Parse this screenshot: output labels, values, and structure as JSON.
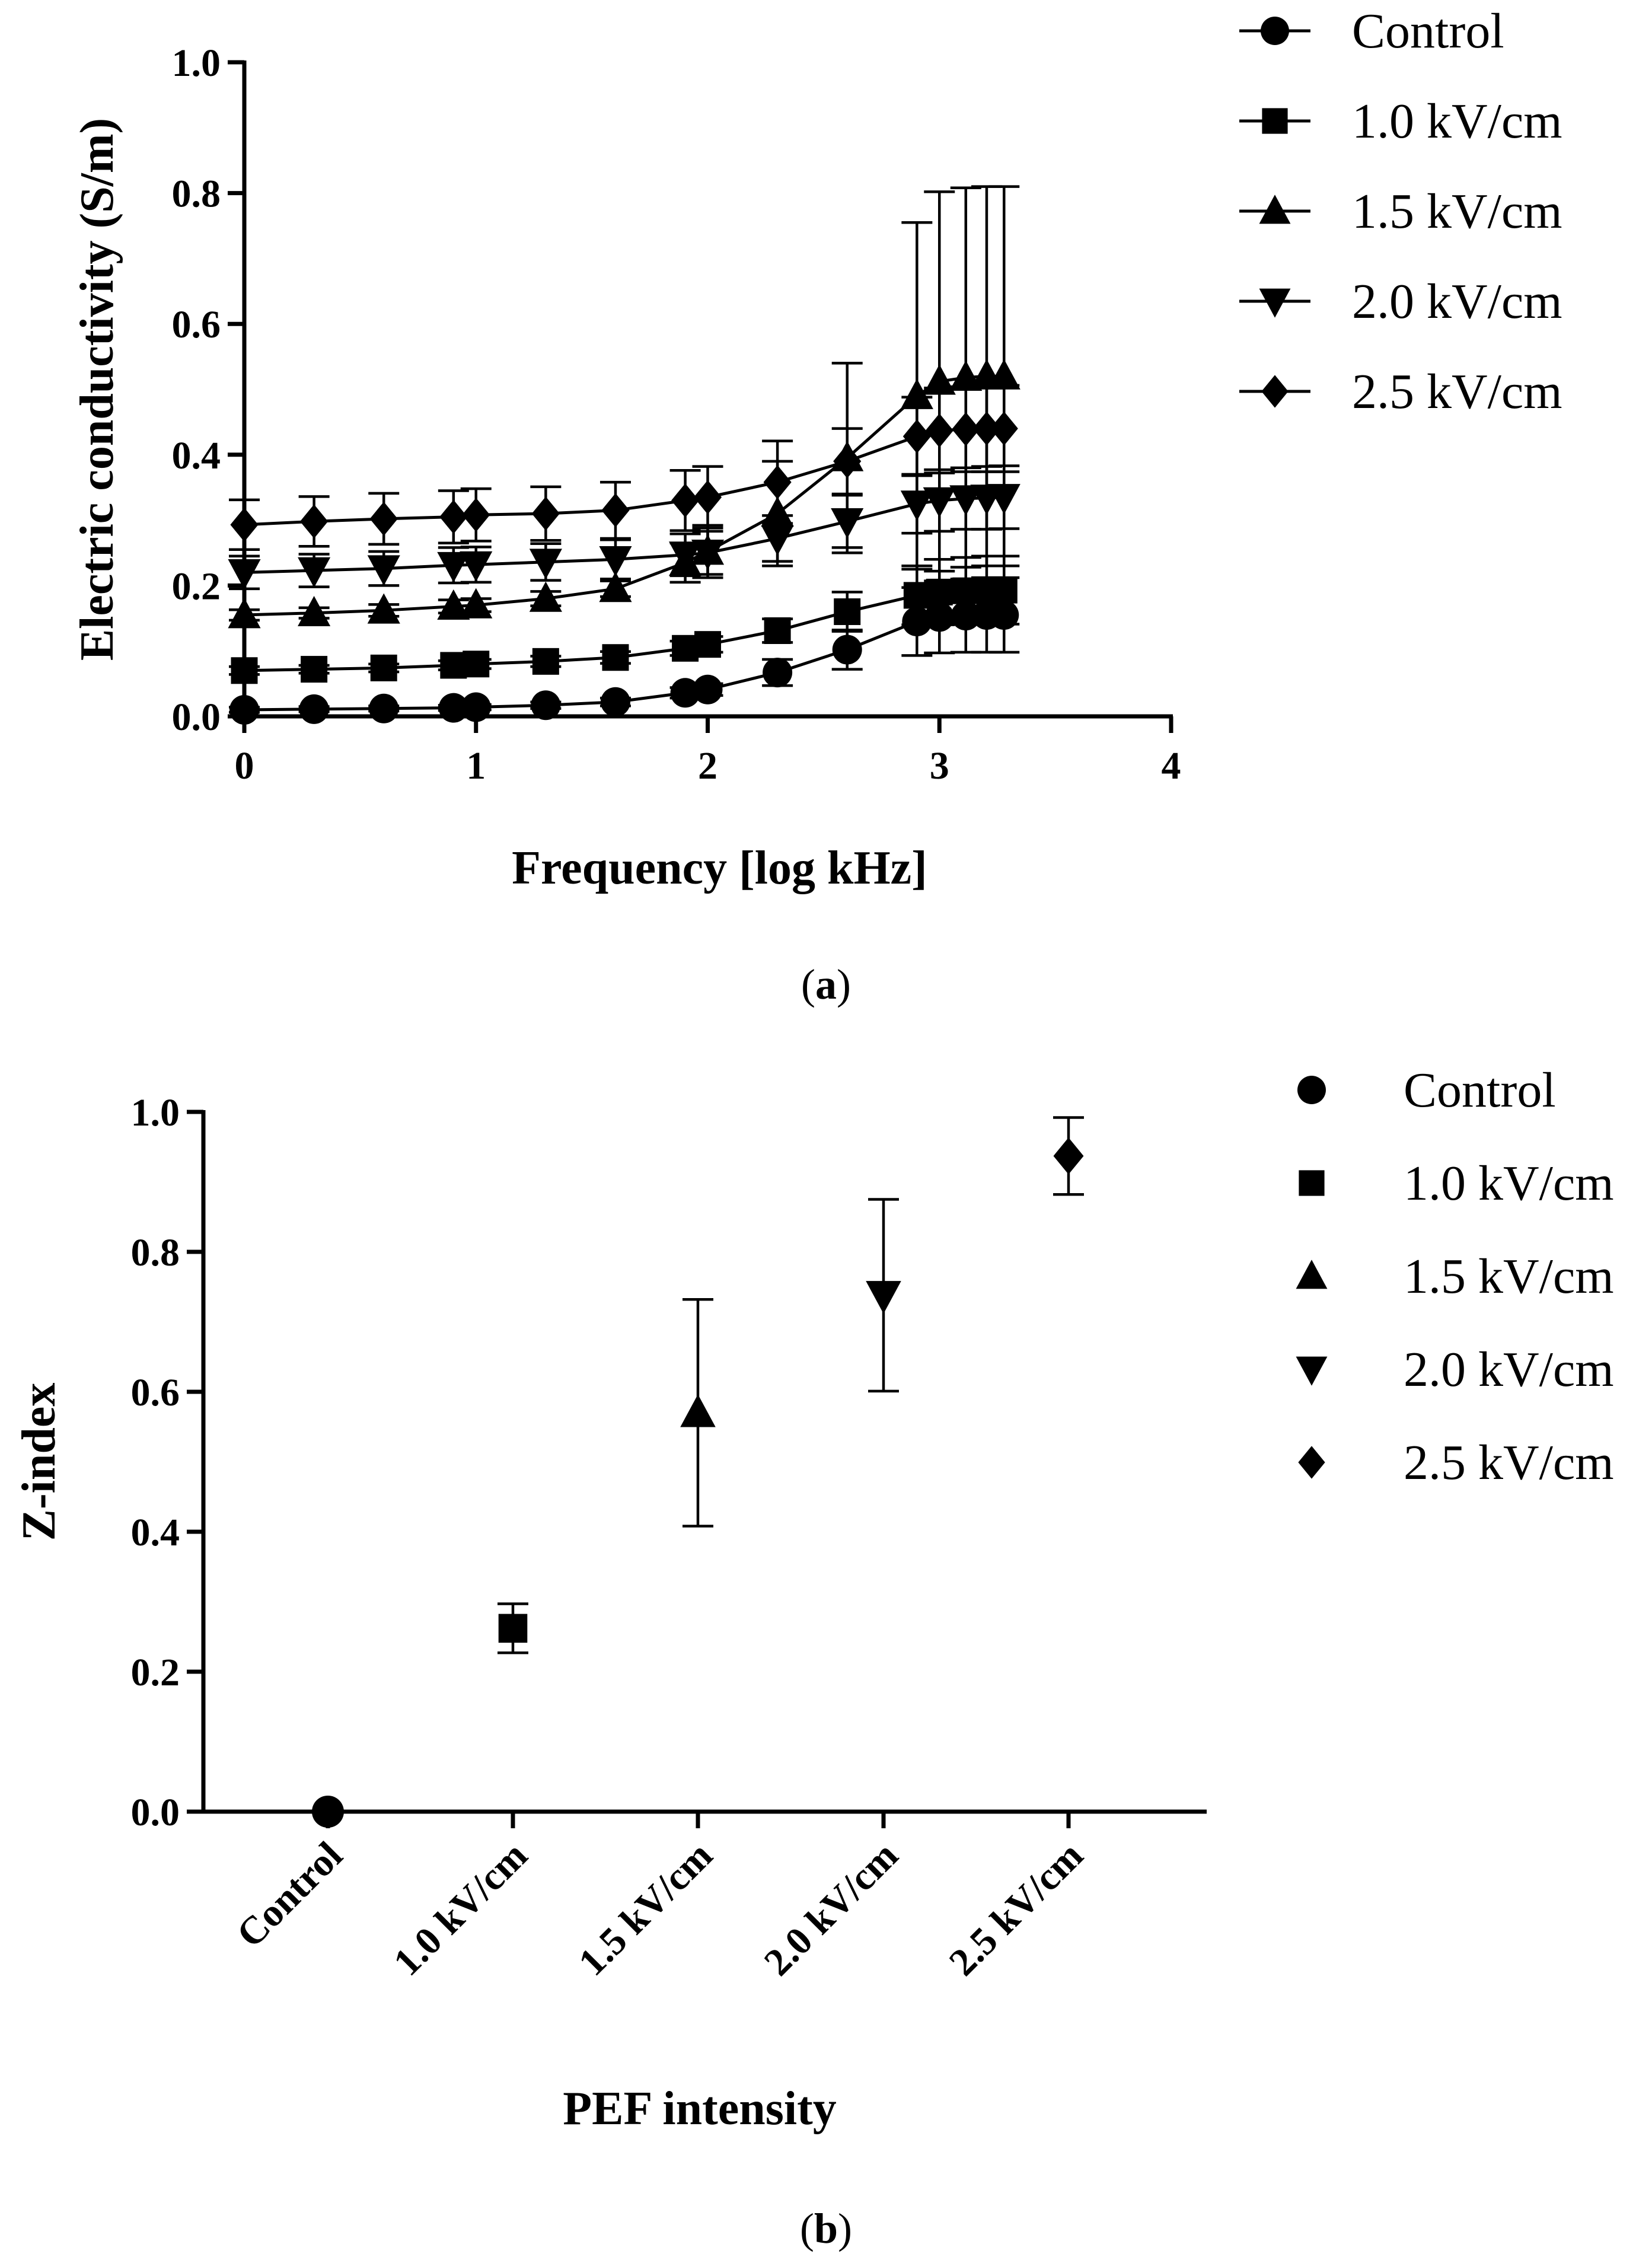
{
  "chart_data": [
    {
      "id": "a",
      "type": "line",
      "panel_label": "a",
      "xlabel": "Frequency [log kHz]",
      "ylabel": "Electric conductivity (S/m)",
      "xlim": [
        0,
        4
      ],
      "ylim": [
        0,
        1.0
      ],
      "x_ticks": [
        0,
        1,
        2,
        3,
        4
      ],
      "x_tick_labels": [
        "0",
        "1",
        "2",
        "3",
        "4"
      ],
      "y_ticks": [
        0,
        0.2,
        0.4,
        0.6,
        0.8,
        1.0
      ],
      "y_tick_labels": [
        "0.0",
        "0.2",
        "0.4",
        "0.6",
        "0.8",
        "1.0"
      ],
      "legend_position": "right",
      "x": [
        0,
        0.301,
        0.602,
        0.903,
        1.0,
        1.301,
        1.602,
        1.903,
        2.0,
        2.301,
        2.602,
        2.903,
        3.0,
        3.114,
        3.204,
        3.279
      ],
      "series": [
        {
          "name": "Control",
          "marker": "circle",
          "values": [
            0.01,
            0.011,
            0.012,
            0.013,
            0.014,
            0.017,
            0.022,
            0.036,
            0.041,
            0.067,
            0.102,
            0.145,
            0.152,
            0.154,
            0.155,
            0.155
          ],
          "errors": [
            0.004,
            0.004,
            0.004,
            0.004,
            0.004,
            0.005,
            0.006,
            0.008,
            0.009,
            0.02,
            0.03,
            0.052,
            0.055,
            0.056,
            0.057,
            0.057
          ]
        },
        {
          "name": "1.0 kV/cm",
          "marker": "square",
          "values": [
            0.07,
            0.072,
            0.074,
            0.078,
            0.08,
            0.084,
            0.09,
            0.104,
            0.11,
            0.131,
            0.16,
            0.185,
            0.19,
            0.192,
            0.193,
            0.193
          ],
          "errors": [
            0.006,
            0.006,
            0.006,
            0.007,
            0.007,
            0.008,
            0.009,
            0.011,
            0.012,
            0.018,
            0.03,
            0.045,
            0.05,
            0.051,
            0.052,
            0.052
          ]
        },
        {
          "name": "1.5 kV/cm",
          "marker": "triangle-up",
          "values": [
            0.155,
            0.158,
            0.162,
            0.168,
            0.17,
            0.18,
            0.195,
            0.235,
            0.252,
            0.31,
            0.395,
            0.49,
            0.512,
            0.518,
            0.52,
            0.52
          ],
          "errors": [
            0.008,
            0.008,
            0.009,
            0.01,
            0.01,
            0.011,
            0.012,
            0.03,
            0.04,
            0.08,
            0.145,
            0.265,
            0.29,
            0.29,
            0.29,
            0.29
          ]
        },
        {
          "name": "2.0 kV/cm",
          "marker": "triangle-down",
          "values": [
            0.22,
            0.223,
            0.226,
            0.231,
            0.232,
            0.236,
            0.24,
            0.247,
            0.25,
            0.272,
            0.298,
            0.325,
            0.33,
            0.333,
            0.334,
            0.335
          ],
          "errors": [
            0.025,
            0.025,
            0.026,
            0.027,
            0.027,
            0.028,
            0.03,
            0.032,
            0.033,
            0.035,
            0.04,
            0.045,
            0.047,
            0.047,
            0.048,
            0.048
          ]
        },
        {
          "name": "2.5 kV/cm",
          "marker": "diamond",
          "values": [
            0.293,
            0.298,
            0.302,
            0.305,
            0.308,
            0.31,
            0.315,
            0.33,
            0.335,
            0.358,
            0.39,
            0.428,
            0.437,
            0.439,
            0.44,
            0.44
          ],
          "errors": [
            0.038,
            0.038,
            0.039,
            0.04,
            0.04,
            0.041,
            0.043,
            0.046,
            0.047,
            0.063,
            0.05,
            0.06,
            0.065,
            0.065,
            0.066,
            0.066
          ]
        }
      ]
    },
    {
      "id": "b",
      "type": "scatter",
      "panel_label": "b",
      "xlabel": "PEF intensity",
      "ylabel": "Z-index",
      "ylim": [
        0,
        1.0
      ],
      "y_ticks": [
        0,
        0.2,
        0.4,
        0.6,
        0.8,
        1.0
      ],
      "y_tick_labels": [
        "0.0",
        "0.2",
        "0.4",
        "0.6",
        "0.8",
        "1.0"
      ],
      "categories": [
        "Control",
        "1.0 kV/cm",
        "1.5 kV/cm",
        "2.0 kV/cm",
        "2.5 kV/cm"
      ],
      "legend_position": "right",
      "series": [
        {
          "name": "Control",
          "marker": "circle",
          "value": 0.0,
          "error": 0.0
        },
        {
          "name": "1.0 kV/cm",
          "marker": "square",
          "value": 0.262,
          "error": 0.035
        },
        {
          "name": "1.5 kV/cm",
          "marker": "triangle-up",
          "value": 0.57,
          "error": 0.162
        },
        {
          "name": "2.0 kV/cm",
          "marker": "triangle-down",
          "value": 0.738,
          "error": 0.137
        },
        {
          "name": "2.5 kV/cm",
          "marker": "diamond",
          "value": 0.937,
          "error": 0.055
        }
      ]
    }
  ]
}
